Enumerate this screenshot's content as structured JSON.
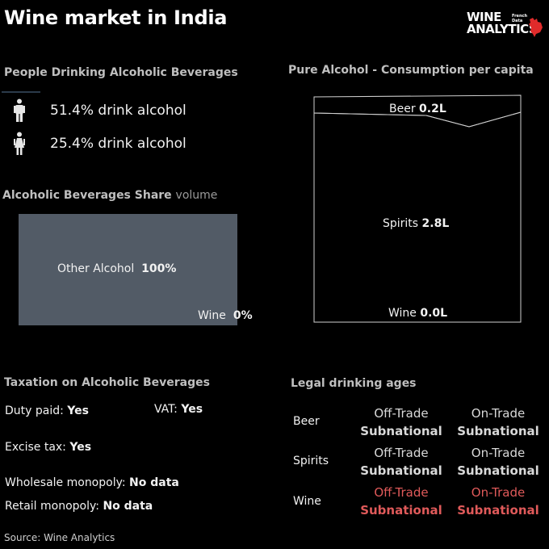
{
  "title": "Wine market in India",
  "logo": {
    "line1": "WINE",
    "line2": "ANALYTICS",
    "sub1": "French",
    "sub2": "Data"
  },
  "people": {
    "heading": "People Drinking Alcoholic Beverages",
    "male": {
      "icon": "male-person-icon",
      "text": "51.4% drink alcohol",
      "value_pct": 51.4
    },
    "female": {
      "icon": "female-person-icon",
      "text": "25.4% drink alcohol",
      "value_pct": 25.4
    }
  },
  "share": {
    "heading": "Alcoholic Beverages Share",
    "heading_suffix": "volume",
    "other_name": "Other Alcohol",
    "other_value": "100%",
    "wine_name": "Wine",
    "wine_value": "0%",
    "color": "#525b66"
  },
  "pure": {
    "heading": "Pure Alcohol - Consumption per capita",
    "beer_name": "Beer",
    "beer_value": "0.2L",
    "spirits_name": "Spirits",
    "spirits_value": "2.8L",
    "wine_name": "Wine",
    "wine_value": "0.0L"
  },
  "taxation": {
    "heading": "Taxation on Alcoholic Beverages",
    "duty_label": "Duty paid:",
    "duty_value": "Yes",
    "vat_label": "VAT:",
    "vat_value": "Yes",
    "excise_label": "Excise tax:",
    "excise_value": "Yes",
    "wholesale_label": "Wholesale monopoly:",
    "wholesale_value": "No data",
    "retail_label": "Retail monopoly:",
    "retail_value": "No data"
  },
  "ages": {
    "heading": "Legal drinking ages",
    "rows": [
      {
        "beverage": "Beer",
        "off_label": "Off-Trade",
        "off_value": "Subnational",
        "on_label": "On-Trade",
        "on_value": "Subnational"
      },
      {
        "beverage": "Spirits",
        "off_label": "Off-Trade",
        "off_value": "Subnational",
        "on_label": "On-Trade",
        "on_value": "Subnational"
      },
      {
        "beverage": "Wine",
        "off_label": "Off-Trade",
        "off_value": "Subnational",
        "on_label": "On-Trade",
        "on_value": "Subnational"
      }
    ],
    "highlight_color": "#e05a5a"
  },
  "source": "Source: Wine Analytics",
  "chart_data": [
    {
      "type": "bar",
      "title": "Alcoholic Beverages Share",
      "subtitle": "volume",
      "categories": [
        "Other Alcohol",
        "Wine"
      ],
      "values": [
        100,
        0
      ],
      "unit": "%"
    },
    {
      "type": "area",
      "title": "Pure Alcohol - Consumption per capita",
      "categories": [
        "Beer",
        "Spirits",
        "Wine"
      ],
      "values": [
        0.2,
        2.8,
        0.0
      ],
      "unit": "L"
    }
  ]
}
